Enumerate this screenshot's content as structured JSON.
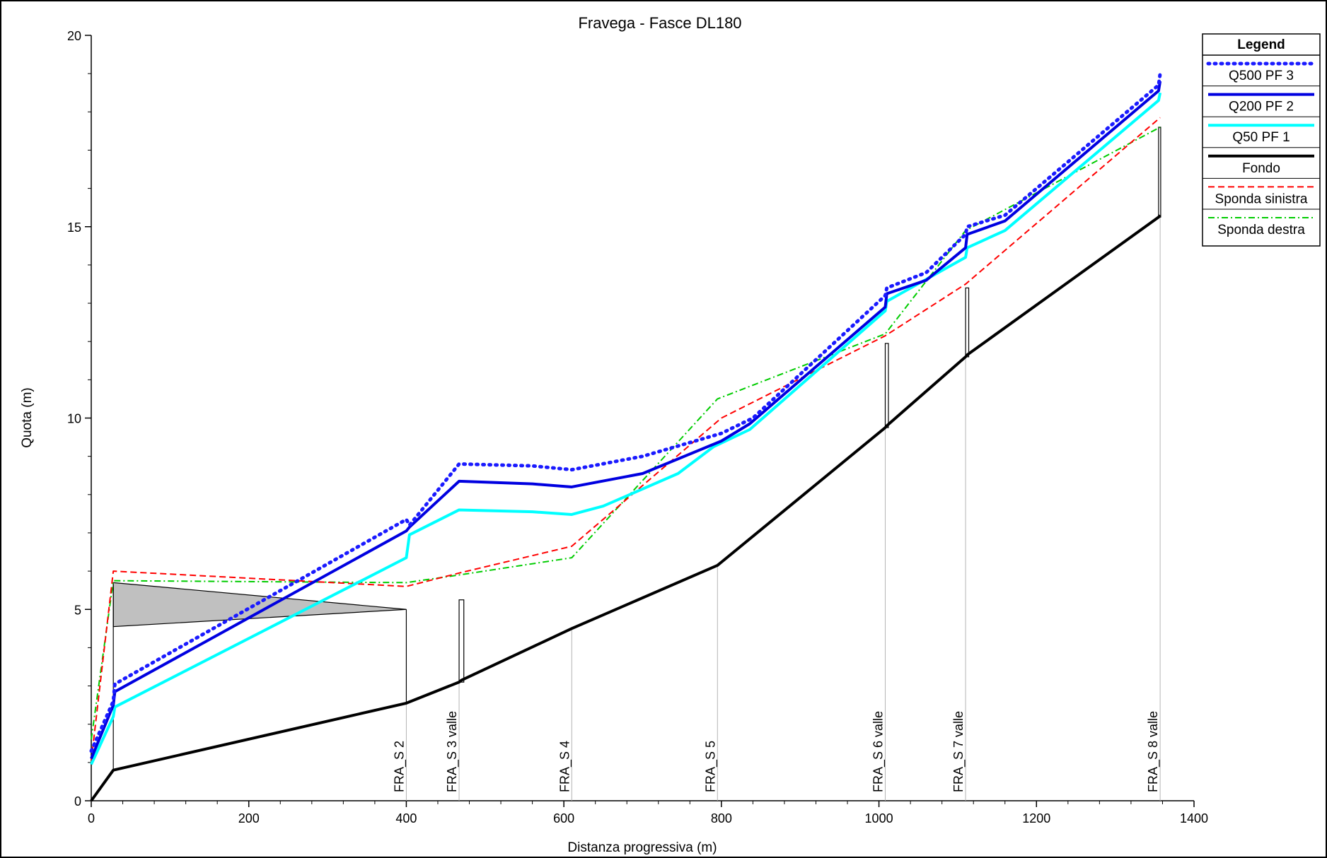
{
  "chart_data": {
    "type": "line",
    "title": "Fravega - Fasce DL180",
    "xlabel": "Distanza progressiva (m)",
    "ylabel": "Quota (m)",
    "xlim": [
      0,
      1400
    ],
    "ylim": [
      0,
      20
    ],
    "x_ticks": [
      0,
      200,
      400,
      600,
      800,
      1000,
      1200,
      1400
    ],
    "y_ticks": [
      0,
      5,
      10,
      15,
      20
    ],
    "grid": false,
    "legend": {
      "title": "Legend",
      "placement": "top-right",
      "entries": [
        "Q500  PF 3",
        "Q200  PF 2",
        "Q50  PF 1",
        "Fondo",
        "Sponda sinistra",
        "Sponda destra"
      ]
    },
    "series": [
      {
        "name": "Q500  PF 3",
        "color": "#1a1aff",
        "style": "dotted",
        "points": [
          [
            0,
            1.3
          ],
          [
            28,
            2.6
          ],
          [
            30,
            3.05
          ],
          [
            400,
            7.35
          ],
          [
            404,
            7.2
          ],
          [
            467,
            8.8
          ],
          [
            560,
            8.75
          ],
          [
            610,
            8.65
          ],
          [
            700,
            9.0
          ],
          [
            800,
            9.6
          ],
          [
            840,
            10.0
          ],
          [
            1008,
            13.2
          ],
          [
            1010,
            13.4
          ],
          [
            1060,
            13.8
          ],
          [
            1110,
            14.8
          ],
          [
            1112,
            15.0
          ],
          [
            1160,
            15.3
          ],
          [
            1355,
            18.7
          ],
          [
            1357,
            19.0
          ]
        ]
      },
      {
        "name": "Q200  PF 2",
        "color": "#0000e0",
        "style": "solid",
        "points": [
          [
            0,
            1.1
          ],
          [
            28,
            2.5
          ],
          [
            30,
            2.85
          ],
          [
            400,
            7.05
          ],
          [
            404,
            7.15
          ],
          [
            467,
            8.35
          ],
          [
            560,
            8.28
          ],
          [
            610,
            8.2
          ],
          [
            700,
            8.55
          ],
          [
            800,
            9.4
          ],
          [
            836,
            9.85
          ],
          [
            1008,
            12.9
          ],
          [
            1010,
            13.25
          ],
          [
            1060,
            13.6
          ],
          [
            1110,
            14.45
          ],
          [
            1112,
            14.8
          ],
          [
            1160,
            15.15
          ],
          [
            1355,
            18.55
          ],
          [
            1357,
            18.8
          ]
        ]
      },
      {
        "name": "Q50  PF 1",
        "color": "#00ffff",
        "style": "solid",
        "points": [
          [
            0,
            0.95
          ],
          [
            28,
            2.2
          ],
          [
            30,
            2.45
          ],
          [
            400,
            6.35
          ],
          [
            404,
            6.95
          ],
          [
            467,
            7.6
          ],
          [
            560,
            7.55
          ],
          [
            610,
            7.48
          ],
          [
            650,
            7.7
          ],
          [
            745,
            8.55
          ],
          [
            790,
            9.25
          ],
          [
            836,
            9.7
          ],
          [
            1008,
            12.8
          ],
          [
            1010,
            13.05
          ],
          [
            1110,
            14.2
          ],
          [
            1112,
            14.45
          ],
          [
            1160,
            14.9
          ],
          [
            1355,
            18.3
          ],
          [
            1357,
            18.5
          ]
        ]
      },
      {
        "name": "Fondo",
        "color": "#000000",
        "style": "solid",
        "points": [
          [
            0,
            0
          ],
          [
            28,
            0.8
          ],
          [
            400,
            2.55
          ],
          [
            467,
            3.1
          ],
          [
            470,
            3.15
          ],
          [
            610,
            4.5
          ],
          [
            795,
            6.15
          ],
          [
            1008,
            9.75
          ],
          [
            1010,
            9.8
          ],
          [
            1110,
            11.6
          ],
          [
            1112,
            11.65
          ],
          [
            1355,
            15.25
          ],
          [
            1357,
            15.3
          ]
        ]
      },
      {
        "name": "Sponda sinistra",
        "color": "#ff0000",
        "style": "dashed",
        "points": [
          [
            0,
            1.05
          ],
          [
            28,
            6.0
          ],
          [
            400,
            5.6
          ],
          [
            467,
            5.95
          ],
          [
            610,
            6.65
          ],
          [
            800,
            10.0
          ],
          [
            1008,
            12.15
          ],
          [
            1110,
            13.5
          ],
          [
            1357,
            17.85
          ]
        ]
      },
      {
        "name": "Sponda destra",
        "color": "#00cc00",
        "style": "dashdot",
        "points": [
          [
            0,
            1.6
          ],
          [
            28,
            5.75
          ],
          [
            400,
            5.7
          ],
          [
            467,
            5.9
          ],
          [
            610,
            6.35
          ],
          [
            795,
            10.5
          ],
          [
            1008,
            12.2
          ],
          [
            1110,
            14.9
          ],
          [
            1357,
            17.6
          ]
        ]
      }
    ],
    "sections": [
      {
        "x": 28,
        "label": ""
      },
      {
        "x": 400,
        "label": "FRA_S 2"
      },
      {
        "x": 467,
        "label": "FRA_S 3 valle"
      },
      {
        "x": 610,
        "label": "FRA_S 4"
      },
      {
        "x": 795,
        "label": "FRA_S 5"
      },
      {
        "x": 1008,
        "label": "FRA_S 6 valle"
      },
      {
        "x": 1110,
        "label": "FRA_S 7 valle"
      },
      {
        "x": 1357,
        "label": "FRA_S 8 valle"
      }
    ],
    "structures": [
      {
        "x0": 467,
        "x1": 473,
        "y0": 3.1,
        "y1": 5.25
      },
      {
        "x0": 1008,
        "x1": 1012,
        "y0": 9.75,
        "y1": 11.95
      },
      {
        "x0": 1110,
        "x1": 1114,
        "y0": 11.6,
        "y1": 13.4
      },
      {
        "x0": 1355,
        "x1": 1357,
        "y0": 15.25,
        "y1": 17.6
      }
    ],
    "ineffective_area": [
      [
        28,
        5.7
      ],
      [
        400,
        5.0
      ],
      [
        28,
        4.55
      ]
    ]
  }
}
